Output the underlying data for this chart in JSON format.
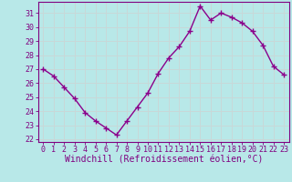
{
  "x": [
    0,
    1,
    2,
    3,
    4,
    5,
    6,
    7,
    8,
    9,
    10,
    11,
    12,
    13,
    14,
    15,
    16,
    17,
    18,
    19,
    20,
    21,
    22,
    23
  ],
  "y": [
    27.0,
    26.5,
    25.7,
    24.9,
    23.9,
    23.3,
    22.8,
    22.3,
    23.3,
    24.3,
    25.3,
    26.7,
    27.8,
    28.6,
    29.7,
    31.5,
    30.5,
    31.0,
    30.7,
    30.3,
    29.7,
    28.7,
    27.2,
    26.6
  ],
  "line_color": "#8B008B",
  "marker": "+",
  "marker_size": 4,
  "marker_linewidth": 1.0,
  "background_color": "#b8e8e8",
  "grid_color": "#c8d8d8",
  "xlabel": "Windchill (Refroidissement éolien,°C)",
  "ylabel": "",
  "title": "",
  "xlim": [
    -0.5,
    23.5
  ],
  "ylim": [
    21.8,
    31.8
  ],
  "yticks": [
    22,
    23,
    24,
    25,
    26,
    27,
    28,
    29,
    30,
    31
  ],
  "xticks": [
    0,
    1,
    2,
    3,
    4,
    5,
    6,
    7,
    8,
    9,
    10,
    11,
    12,
    13,
    14,
    15,
    16,
    17,
    18,
    19,
    20,
    21,
    22,
    23
  ],
  "tick_color": "#800080",
  "label_color": "#800080",
  "xlabel_fontsize": 7,
  "tick_fontsize": 6,
  "spine_color": "#800080",
  "line_width": 1.0
}
